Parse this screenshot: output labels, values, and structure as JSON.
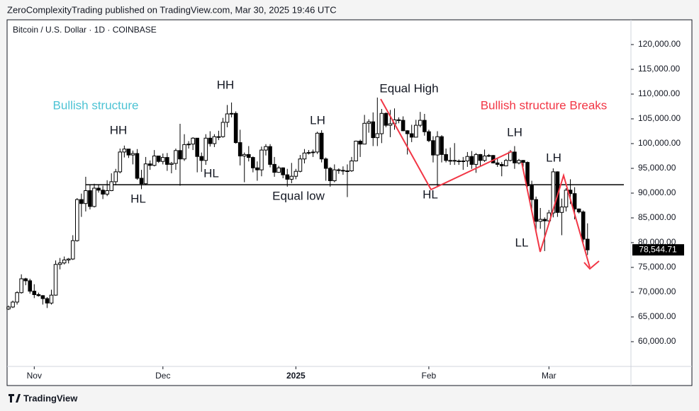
{
  "header": {
    "publisher": "ZeroComplexityTrading published on TradingView.com, Mar 30, 2025 19:46 UTC",
    "logo": "TradingView"
  },
  "chart_data": {
    "type": "candlestick",
    "title": "Bitcoin / U.S. Dollar · 1D · COINBASE",
    "up_color": "#ffffff",
    "down_color": "#000000",
    "border_color": "#000000",
    "ylim": [
      55000,
      125000
    ],
    "yticks": [
      {
        "value": 60000,
        "label": "60,000.00"
      },
      {
        "value": 65000,
        "label": "65,000.00"
      },
      {
        "value": 70000,
        "label": "70,000.00"
      },
      {
        "value": 75000,
        "label": "75,000.00"
      },
      {
        "value": 80000,
        "label": "80,000.00"
      },
      {
        "value": 85000,
        "label": "85,000.00"
      },
      {
        "value": 90000,
        "label": "90,000.00"
      },
      {
        "value": 95000,
        "label": "95,000.00"
      },
      {
        "value": 100000,
        "label": "100,000.00"
      },
      {
        "value": 105000,
        "label": "105,000.00"
      },
      {
        "value": 110000,
        "label": "110,000.00"
      },
      {
        "value": 115000,
        "label": "115,000.00"
      },
      {
        "value": 120000,
        "label": "120,000.00"
      }
    ],
    "xticks": [
      {
        "value": 6,
        "label": "Nov"
      },
      {
        "value": 36,
        "label": "Dec"
      },
      {
        "value": 67,
        "label": "2025"
      },
      {
        "value": 98,
        "label": "Feb"
      },
      {
        "value": 126,
        "label": "Mar"
      }
    ],
    "last_price": {
      "value": 78544.71,
      "label": "78,544.71"
    },
    "hline": 91700,
    "annotations": [
      {
        "text": "Bullish structure",
        "color": "#4dc3d4"
      },
      {
        "text": "HH"
      },
      {
        "text": "HL"
      },
      {
        "text": "HH"
      },
      {
        "text": "HL"
      },
      {
        "text": "LH"
      },
      {
        "text": "Equal low"
      },
      {
        "text": "Equal High"
      },
      {
        "text": "HL"
      },
      {
        "text": "LH"
      },
      {
        "text": "LL"
      },
      {
        "text": "LH"
      },
      {
        "text": "Bullish structure Breaks",
        "color": "#f23645"
      }
    ],
    "candles": [
      [
        66600,
        67300,
        66400,
        67000
      ],
      [
        67000,
        68300,
        66800,
        68000
      ],
      [
        68000,
        70200,
        67500,
        69900
      ],
      [
        69900,
        73600,
        69700,
        72700
      ],
      [
        72700,
        72900,
        71400,
        72300
      ],
      [
        72300,
        72700,
        69700,
        70200
      ],
      [
        70200,
        71600,
        68800,
        69500
      ],
      [
        69500,
        69900,
        69100,
        69300
      ],
      [
        69300,
        69400,
        67500,
        68700
      ],
      [
        68700,
        69000,
        66800,
        67800
      ],
      [
        67800,
        70500,
        67500,
        69400
      ],
      [
        69400,
        76400,
        69300,
        75600
      ],
      [
        75600,
        76900,
        74600,
        75900
      ],
      [
        75900,
        77200,
        75600,
        76500
      ],
      [
        76500,
        76900,
        75800,
        76700
      ],
      [
        76700,
        81500,
        76500,
        80400
      ],
      [
        80400,
        89000,
        80200,
        88700
      ],
      [
        88700,
        89900,
        85200,
        87900
      ],
      [
        87900,
        93300,
        86300,
        90500
      ],
      [
        90500,
        91700,
        86700,
        87300
      ],
      [
        87300,
        91900,
        87100,
        91000
      ],
      [
        91000,
        91800,
        90100,
        90600
      ],
      [
        90600,
        91500,
        88800,
        89800
      ],
      [
        89800,
        92600,
        89400,
        90500
      ],
      [
        90500,
        94000,
        90400,
        92300
      ],
      [
        92300,
        94900,
        91600,
        94300
      ],
      [
        94300,
        99000,
        94000,
        98300
      ],
      [
        98300,
        99600,
        97200,
        98900
      ],
      [
        98900,
        98900,
        97100,
        97700
      ],
      [
        97700,
        98600,
        95800,
        98000
      ],
      [
        98000,
        98900,
        92700,
        93000
      ],
      [
        93000,
        94700,
        90800,
        91900
      ],
      [
        91900,
        97300,
        91600,
        95900
      ],
      [
        95900,
        96600,
        94700,
        95600
      ],
      [
        95600,
        98700,
        95400,
        97500
      ],
      [
        97500,
        97500,
        96100,
        96400
      ],
      [
        96400,
        98000,
        95800,
        97200
      ],
      [
        97200,
        98100,
        94500,
        95800
      ],
      [
        95800,
        96300,
        94000,
        96000
      ],
      [
        96000,
        99000,
        94700,
        98600
      ],
      [
        98600,
        104000,
        91500,
        96900
      ],
      [
        96900,
        101900,
        96500,
        99800
      ],
      [
        99800,
        100500,
        99000,
        99900
      ],
      [
        99900,
        101300,
        98700,
        101100
      ],
      [
        101100,
        101100,
        94200,
        97400
      ],
      [
        97400,
        98200,
        94300,
        96600
      ],
      [
        96600,
        101900,
        95700,
        101100
      ],
      [
        101100,
        102500,
        99400,
        100000
      ],
      [
        100000,
        101900,
        99300,
        101400
      ],
      [
        101400,
        102600,
        100700,
        101400
      ],
      [
        101400,
        105200,
        101200,
        104300
      ],
      [
        104300,
        107800,
        103300,
        106000
      ],
      [
        106000,
        108300,
        105300,
        106100
      ],
      [
        106100,
        106500,
        100000,
        100200
      ],
      [
        100200,
        102800,
        95600,
        97500
      ],
      [
        97500,
        98200,
        92200,
        97800
      ],
      [
        97800,
        99500,
        96400,
        97200
      ],
      [
        97200,
        97400,
        94200,
        95100
      ],
      [
        95100,
        96400,
        92500,
        94700
      ],
      [
        94700,
        99400,
        93400,
        98700
      ],
      [
        98700,
        99900,
        97600,
        99400
      ],
      [
        99400,
        99900,
        95200,
        95800
      ],
      [
        95800,
        97300,
        93300,
        94200
      ],
      [
        94200,
        95500,
        94100,
        95100
      ],
      [
        95100,
        95200,
        93000,
        93700
      ],
      [
        93700,
        94900,
        91300,
        92800
      ],
      [
        92800,
        96100,
        92000,
        93400
      ],
      [
        93400,
        94900,
        92800,
        94400
      ],
      [
        94400,
        97700,
        94200,
        96900
      ],
      [
        96900,
        98900,
        96000,
        98100
      ],
      [
        98100,
        98700,
        97800,
        98200
      ],
      [
        98200,
        98800,
        97300,
        98300
      ],
      [
        98300,
        102400,
        97900,
        102100
      ],
      [
        102100,
        102700,
        96200,
        96900
      ],
      [
        96900,
        97200,
        92500,
        95000
      ],
      [
        95000,
        95300,
        91300,
        92500
      ],
      [
        92500,
        95800,
        92200,
        94700
      ],
      [
        94700,
        95000,
        93900,
        94600
      ],
      [
        94600,
        95400,
        93700,
        94500
      ],
      [
        94500,
        95800,
        89200,
        94500
      ],
      [
        94500,
        97300,
        94300,
        96500
      ],
      [
        96500,
        100600,
        96400,
        100500
      ],
      [
        100500,
        100800,
        97300,
        99900
      ],
      [
        99900,
        105800,
        99900,
        104100
      ],
      [
        104100,
        104900,
        102200,
        104400
      ],
      [
        104400,
        106300,
        99500,
        101200
      ],
      [
        101200,
        109300,
        99500,
        102000
      ],
      [
        102000,
        107000,
        100100,
        106100
      ],
      [
        106100,
        106300,
        103300,
        103700
      ],
      [
        103700,
        106800,
        101300,
        104000
      ],
      [
        104000,
        107100,
        102800,
        104800
      ],
      [
        104800,
        105300,
        104100,
        104700
      ],
      [
        104700,
        105500,
        102500,
        102600
      ],
      [
        102600,
        102700,
        97800,
        102000
      ],
      [
        102000,
        103800,
        100300,
        101300
      ],
      [
        101300,
        104800,
        101300,
        103700
      ],
      [
        103700,
        106400,
        103300,
        104700
      ],
      [
        104700,
        106000,
        101600,
        102400
      ],
      [
        102400,
        102800,
        100300,
        100600
      ],
      [
        100600,
        101500,
        96200,
        97700
      ],
      [
        97700,
        102500,
        91200,
        101400
      ],
      [
        101400,
        101700,
        96200,
        97800
      ],
      [
        97800,
        99000,
        96200,
        96600
      ],
      [
        96600,
        99200,
        95700,
        96600
      ],
      [
        96600,
        100100,
        95700,
        96500
      ],
      [
        96500,
        96800,
        95700,
        96500
      ],
      [
        96500,
        97300,
        94700,
        96500
      ],
      [
        96500,
        98300,
        95300,
        97400
      ],
      [
        97400,
        98500,
        94900,
        95800
      ],
      [
        95800,
        98100,
        94100,
        97800
      ],
      [
        97800,
        97900,
        95300,
        96600
      ],
      [
        96600,
        98800,
        96300,
        97500
      ],
      [
        97500,
        97900,
        97300,
        97600
      ],
      [
        97600,
        97700,
        96000,
        96100
      ],
      [
        96100,
        97000,
        95300,
        95800
      ],
      [
        95800,
        96300,
        93400,
        95500
      ],
      [
        95500,
        96900,
        95500,
        96600
      ],
      [
        96600,
        98700,
        96400,
        98300
      ],
      [
        98300,
        99500,
        94900,
        96100
      ],
      [
        96100,
        96900,
        95800,
        96600
      ],
      [
        96600,
        96700,
        95300,
        96200
      ],
      [
        96200,
        96400,
        91200,
        91500
      ],
      [
        91500,
        92500,
        86100,
        88700
      ],
      [
        88700,
        89300,
        82300,
        84300
      ],
      [
        84300,
        87000,
        82800,
        84700
      ],
      [
        84700,
        85100,
        78300,
        84400
      ],
      [
        84400,
        86600,
        83800,
        86000
      ],
      [
        86000,
        95000,
        85100,
        94300
      ],
      [
        94300,
        94400,
        85200,
        86100
      ],
      [
        86100,
        88900,
        81500,
        87200
      ],
      [
        87200,
        91000,
        86300,
        90600
      ],
      [
        90600,
        92800,
        87800,
        89900
      ],
      [
        89900,
        91200,
        84700,
        86800
      ],
      [
        86800,
        86900,
        85900,
        86200
      ],
      [
        86200,
        86500,
        80000,
        80700
      ],
      [
        80700,
        83900,
        77500,
        78544.71
      ]
    ]
  }
}
